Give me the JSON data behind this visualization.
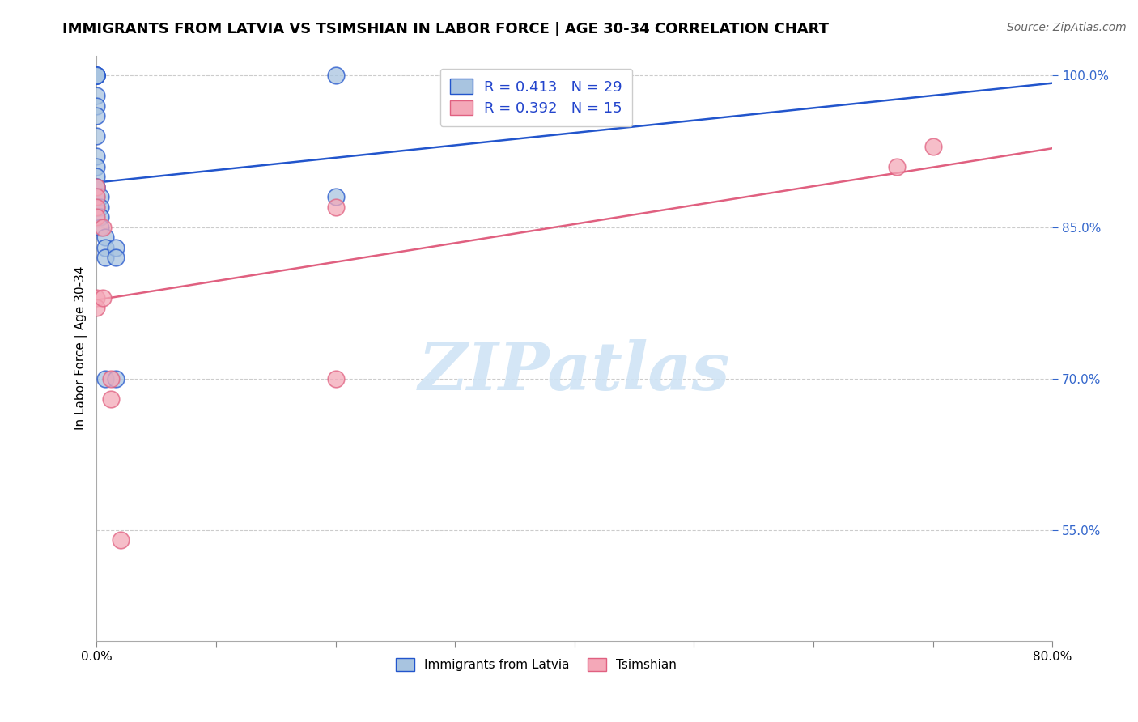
{
  "title": "IMMIGRANTS FROM LATVIA VS TSIMSHIAN IN LABOR FORCE | AGE 30-34 CORRELATION CHART",
  "source": "Source: ZipAtlas.com",
  "ylabel": "In Labor Force | Age 30-34",
  "xlim": [
    0.0,
    0.8
  ],
  "ylim": [
    0.44,
    1.02
  ],
  "yticks": [
    0.55,
    0.7,
    0.85,
    1.0
  ],
  "ytick_labels": [
    "55.0%",
    "70.0%",
    "85.0%",
    "100.0%"
  ],
  "xticks": [
    0.0,
    0.1,
    0.2,
    0.3,
    0.4,
    0.5,
    0.6,
    0.7,
    0.8
  ],
  "xtick_labels": [
    "0.0%",
    "",
    "",
    "",
    "",
    "",
    "",
    "",
    "80.0%"
  ],
  "latvia_R": "0.413",
  "latvia_N": "29",
  "tsimshian_R": "0.392",
  "tsimshian_N": "15",
  "latvia_color": "#a8c4e0",
  "tsimshian_color": "#f4a8b8",
  "latvia_line_color": "#2255cc",
  "tsimshian_line_color": "#e06080",
  "latvia_x": [
    0.0,
    0.0,
    0.0,
    0.0,
    0.0,
    0.0,
    0.0,
    0.0,
    0.0,
    0.0,
    0.0,
    0.0,
    0.0,
    0.0,
    0.0,
    0.0,
    0.003,
    0.003,
    0.003,
    0.003,
    0.007,
    0.007,
    0.007,
    0.007,
    0.016,
    0.016,
    0.016,
    0.2,
    0.2
  ],
  "latvia_y": [
    1.0,
    1.0,
    1.0,
    1.0,
    1.0,
    0.98,
    0.97,
    0.96,
    0.94,
    0.92,
    0.91,
    0.9,
    0.89,
    0.89,
    0.88,
    0.87,
    0.88,
    0.87,
    0.86,
    0.85,
    0.84,
    0.83,
    0.82,
    0.7,
    0.83,
    0.82,
    0.7,
    1.0,
    0.88
  ],
  "tsimshian_x": [
    0.0,
    0.0,
    0.0,
    0.0,
    0.0,
    0.0,
    0.005,
    0.005,
    0.012,
    0.012,
    0.02,
    0.2,
    0.2,
    0.67,
    0.7
  ],
  "tsimshian_y": [
    0.89,
    0.88,
    0.87,
    0.86,
    0.78,
    0.77,
    0.85,
    0.78,
    0.7,
    0.68,
    0.54,
    0.87,
    0.7,
    0.91,
    0.93
  ],
  "background_color": "#ffffff",
  "watermark_text": "ZIPatlas",
  "watermark_color": "#d0e4f5",
  "title_fontsize": 13,
  "axis_label_fontsize": 11,
  "tick_fontsize": 11,
  "legend_fontsize": 13,
  "source_fontsize": 10,
  "legend_text_color": "#2244cc",
  "ytick_color": "#3366cc"
}
